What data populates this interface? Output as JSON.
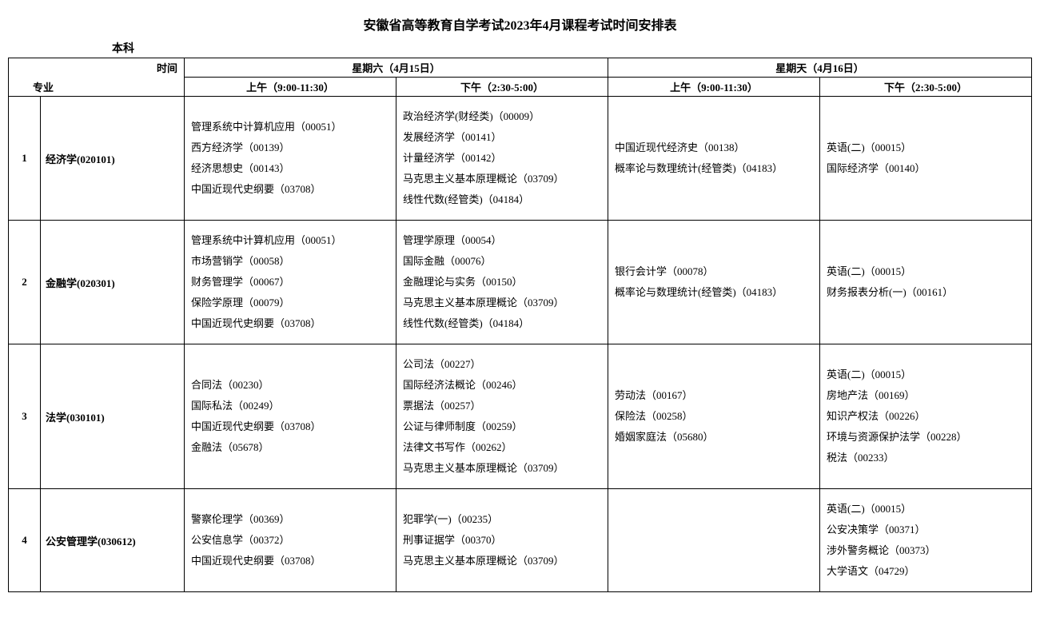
{
  "title": "安徽省高等教育自学考试2023年4月课程考试时间安排表",
  "level": "本科",
  "header": {
    "major_label": "专业",
    "time_label": "时间",
    "day1": "星期六（4月15日）",
    "day2": "星期天（4月16日）",
    "slot_am": "上午（9:00-11:30）",
    "slot_pm": "下午（2:30-5:00）"
  },
  "rows": [
    {
      "num": "1",
      "major": "经济学(020101)",
      "sat_am": [
        "管理系统中计算机应用（00051）",
        "西方经济学（00139）",
        "经济思想史（00143）",
        "中国近现代史纲要（03708）"
      ],
      "sat_pm": [
        "政治经济学(财经类)（00009）",
        "发展经济学（00141）",
        "计量经济学（00142）",
        "马克思主义基本原理概论（03709）",
        "线性代数(经管类)（04184）"
      ],
      "sun_am": [
        "中国近现代经济史（00138）",
        "概率论与数理统计(经管类)（04183）"
      ],
      "sun_pm": [
        "英语(二)（00015）",
        "国际经济学（00140）"
      ]
    },
    {
      "num": "2",
      "major": "金融学(020301)",
      "sat_am": [
        "管理系统中计算机应用（00051）",
        "市场营销学（00058）",
        "财务管理学（00067）",
        "保险学原理（00079）",
        "中国近现代史纲要（03708）"
      ],
      "sat_pm": [
        "管理学原理（00054）",
        "国际金融（00076）",
        "金融理论与实务（00150）",
        "马克思主义基本原理概论（03709）",
        "线性代数(经管类)（04184）"
      ],
      "sun_am": [
        "银行会计学（00078）",
        "概率论与数理统计(经管类)（04183）"
      ],
      "sun_pm": [
        "英语(二)（00015）",
        "财务报表分析(一)（00161）"
      ]
    },
    {
      "num": "3",
      "major": "法学(030101)",
      "sat_am": [
        "合同法（00230）",
        "国际私法（00249）",
        "中国近现代史纲要（03708）",
        "金融法（05678）"
      ],
      "sat_pm": [
        "公司法（00227）",
        "国际经济法概论（00246）",
        "票据法（00257）",
        "公证与律师制度（00259）",
        "法律文书写作（00262）",
        "马克思主义基本原理概论（03709）"
      ],
      "sun_am": [
        "劳动法（00167）",
        "保险法（00258）",
        "婚姻家庭法（05680）"
      ],
      "sun_pm": [
        "英语(二)（00015）",
        "房地产法（00169）",
        "知识产权法（00226）",
        "环境与资源保护法学（00228）",
        "税法（00233）"
      ]
    },
    {
      "num": "4",
      "major": "公安管理学(030612)",
      "sat_am": [
        "警察伦理学（00369）",
        "公安信息学（00372）",
        "中国近现代史纲要（03708）"
      ],
      "sat_pm": [
        "犯罪学(一)（00235）",
        "刑事证据学（00370）",
        "马克思主义基本原理概论（03709）"
      ],
      "sun_am": [],
      "sun_pm": [
        "英语(二)（00015）",
        "公安决策学（00371）",
        "涉外警务概论（00373）",
        "大学语文（04729）"
      ]
    }
  ]
}
